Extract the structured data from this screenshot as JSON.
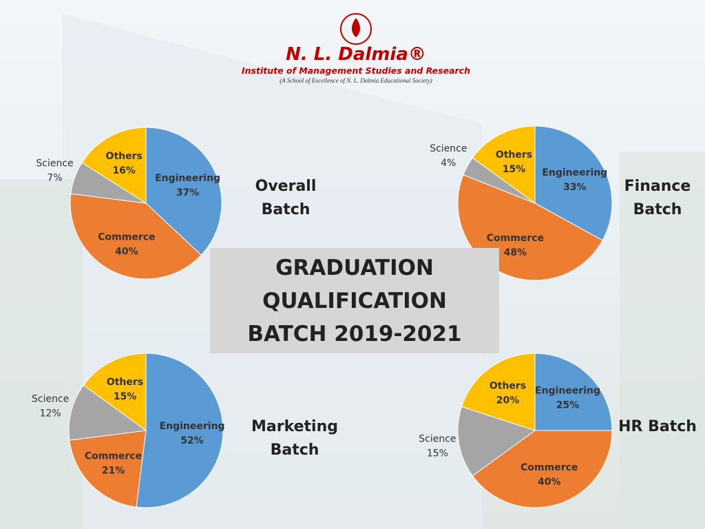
{
  "header": {
    "brand": "N. L. Dalmia®",
    "institute": "Institute of Management Studies and Research",
    "tagline": "(A School of Excellence of N. L. Dalmia Educational Society)"
  },
  "center_title": "GRADUATION QUALIFICATION BATCH 2019-2021",
  "chart_data": [
    {
      "type": "pie",
      "title": "Overall Batch",
      "categories": [
        "Engineering",
        "Commerce",
        "Science",
        "Others"
      ],
      "values": [
        37,
        40,
        7,
        16
      ],
      "value_labels": [
        "37%",
        "40%",
        "7%",
        "16%"
      ],
      "colors": [
        "#5b9bd5",
        "#ed7d31",
        "#a5a5a5",
        "#ffc000"
      ]
    },
    {
      "type": "pie",
      "title": "Finance Batch",
      "categories": [
        "Engineering",
        "Commerce",
        "Science",
        "Others"
      ],
      "values": [
        33,
        48,
        4,
        15
      ],
      "value_labels": [
        "33%",
        "48%",
        "4%",
        "15%"
      ],
      "colors": [
        "#5b9bd5",
        "#ed7d31",
        "#a5a5a5",
        "#ffc000"
      ]
    },
    {
      "type": "pie",
      "title": "Marketing Batch",
      "categories": [
        "Engineering",
        "Commerce",
        "Science",
        "Others"
      ],
      "values": [
        52,
        21,
        12,
        15
      ],
      "value_labels": [
        "52%",
        "21%",
        "12%",
        "15%"
      ],
      "colors": [
        "#5b9bd5",
        "#ed7d31",
        "#a5a5a5",
        "#ffc000"
      ]
    },
    {
      "type": "pie",
      "title": "HR Batch",
      "categories": [
        "Engineering",
        "Commerce",
        "Science",
        "Others"
      ],
      "values": [
        25,
        40,
        15,
        20
      ],
      "value_labels": [
        "25%",
        "40%",
        "15%",
        "20%"
      ],
      "colors": [
        "#5b9bd5",
        "#ed7d31",
        "#a5a5a5",
        "#ffc000"
      ]
    }
  ]
}
